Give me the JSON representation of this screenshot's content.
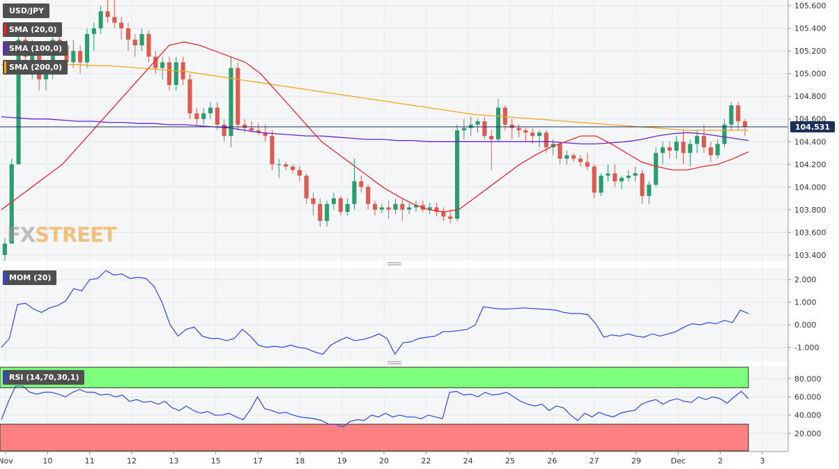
{
  "symbol": "USD/JPY",
  "logo": {
    "part1": "FX",
    "part2": "STREET"
  },
  "current_price_label": "104.531",
  "colors": {
    "up": "#2a9d6f",
    "down": "#dd5a4e",
    "sma20": "#e8262c",
    "sma100": "#6a1fd0",
    "sma200": "#f5a623",
    "momentum": "#2f45e0",
    "rsi": "#2f45e0",
    "price_line": "#1a2f5a",
    "rsi_overbought_zone": "#7dff7d",
    "rsi_oversold_zone": "#ff8080"
  },
  "legends": {
    "sma20": "SMA (20,0)",
    "sma100": "SMA (100,0)",
    "sma200": "SMA (200,0)",
    "mom": "MOM (20)",
    "rsi": "RSI (14,70,30,1)"
  },
  "chart_data": [
    {
      "type": "candlestick",
      "title": "USD/JPY",
      "ylim": [
        103.35,
        105.65
      ],
      "ytick_labels": [
        "103.400",
        "103.600",
        "103.800",
        "104.000",
        "104.200",
        "104.400",
        "104.600",
        "104.800",
        "105.000",
        "105.200",
        "105.400",
        "105.600"
      ],
      "x_tick_labels": [
        "Nov",
        "10",
        "11",
        "12",
        "13",
        "15",
        "17",
        "18",
        "19",
        "20",
        "22",
        "24",
        "25",
        "26",
        "27",
        "29",
        "Dec",
        "2",
        "3"
      ],
      "last_price": 104.531,
      "candles_ohlc": [
        [
          103.4,
          103.55,
          103.35,
          103.5
        ],
        [
          103.5,
          104.25,
          103.5,
          104.2
        ],
        [
          104.2,
          105.35,
          104.2,
          105.3
        ],
        [
          105.3,
          105.45,
          105.05,
          105.15
        ],
        [
          105.1,
          105.3,
          104.95,
          105.25
        ],
        [
          105.2,
          105.25,
          104.85,
          104.95
        ],
        [
          104.95,
          105.1,
          104.85,
          105.05
        ],
        [
          105.05,
          105.35,
          104.95,
          105.3
        ],
        [
          105.3,
          105.4,
          105.2,
          105.25
        ],
        [
          105.25,
          105.3,
          105.05,
          105.1
        ],
        [
          105.1,
          105.3,
          105.05,
          105.2
        ],
        [
          105.2,
          105.25,
          105.0,
          105.1
        ],
        [
          105.1,
          105.4,
          105.05,
          105.35
        ],
        [
          105.35,
          105.45,
          105.2,
          105.4
        ],
        [
          105.4,
          105.6,
          105.35,
          105.55
        ],
        [
          105.55,
          105.65,
          105.45,
          105.5
        ],
        [
          105.5,
          105.65,
          105.4,
          105.45
        ],
        [
          105.45,
          105.5,
          105.3,
          105.4
        ],
        [
          105.4,
          105.45,
          105.2,
          105.3
        ],
        [
          105.3,
          105.35,
          105.15,
          105.25
        ],
        [
          105.25,
          105.4,
          105.2,
          105.35
        ],
        [
          105.35,
          105.38,
          105.1,
          105.15
        ],
        [
          105.15,
          105.2,
          105.0,
          105.05
        ],
        [
          105.05,
          105.15,
          104.95,
          105.1
        ],
        [
          105.1,
          105.15,
          104.85,
          104.9
        ],
        [
          104.9,
          105.15,
          104.85,
          105.1
        ],
        [
          105.1,
          105.15,
          104.9,
          104.95
        ],
        [
          104.95,
          105.0,
          104.6,
          104.65
        ],
        [
          104.65,
          104.7,
          104.55,
          104.6
        ],
        [
          104.6,
          104.7,
          104.55,
          104.65
        ],
        [
          104.65,
          104.75,
          104.6,
          104.7
        ],
        [
          104.7,
          104.75,
          104.5,
          104.55
        ],
        [
          104.55,
          104.6,
          104.4,
          104.45
        ],
        [
          104.45,
          105.15,
          104.35,
          105.05
        ],
        [
          105.05,
          105.1,
          104.5,
          104.55
        ],
        [
          104.55,
          104.6,
          104.48,
          104.52
        ],
        [
          104.52,
          104.58,
          104.48,
          104.5
        ],
        [
          104.5,
          104.56,
          104.46,
          104.48
        ],
        [
          104.48,
          104.55,
          104.4,
          104.45
        ],
        [
          104.45,
          104.5,
          104.15,
          104.2
        ],
        [
          104.2,
          104.25,
          104.08,
          104.2
        ],
        [
          104.2,
          104.22,
          104.15,
          104.18
        ],
        [
          104.18,
          104.2,
          104.12,
          104.15
        ],
        [
          104.15,
          104.18,
          104.05,
          104.1
        ],
        [
          104.1,
          104.12,
          103.85,
          103.9
        ],
        [
          103.9,
          103.95,
          103.75,
          103.85
        ],
        [
          103.85,
          103.9,
          103.65,
          103.7
        ],
        [
          103.7,
          103.88,
          103.65,
          103.85
        ],
        [
          103.85,
          103.95,
          103.8,
          103.9
        ],
        [
          103.9,
          103.92,
          103.75,
          103.78
        ],
        [
          103.78,
          103.9,
          103.75,
          103.85
        ],
        [
          103.85,
          104.25,
          103.8,
          104.05
        ],
        [
          104.05,
          104.1,
          103.95,
          104.0
        ],
        [
          104.0,
          104.02,
          103.8,
          103.85
        ],
        [
          103.85,
          103.88,
          103.75,
          103.8
        ],
        [
          103.8,
          103.85,
          103.77,
          103.82
        ],
        [
          103.82,
          103.88,
          103.72,
          103.8
        ],
        [
          103.8,
          103.9,
          103.76,
          103.85
        ],
        [
          103.85,
          103.9,
          103.7,
          103.8
        ],
        [
          103.8,
          103.86,
          103.76,
          103.82
        ],
        [
          103.82,
          103.88,
          103.78,
          103.84
        ],
        [
          103.84,
          103.88,
          103.78,
          103.8
        ],
        [
          103.8,
          103.86,
          103.76,
          103.82
        ],
        [
          103.82,
          103.86,
          103.74,
          103.78
        ],
        [
          103.78,
          103.82,
          103.7,
          103.74
        ],
        [
          103.74,
          103.8,
          103.68,
          103.72
        ],
        [
          103.72,
          104.55,
          103.7,
          104.5
        ],
        [
          104.5,
          104.6,
          104.42,
          104.52
        ],
        [
          104.52,
          104.62,
          104.45,
          104.55
        ],
        [
          104.55,
          104.6,
          104.48,
          104.58
        ],
        [
          104.58,
          104.62,
          104.42,
          104.45
        ],
        [
          104.45,
          104.5,
          104.15,
          104.42
        ],
        [
          104.42,
          104.78,
          104.4,
          104.7
        ],
        [
          104.7,
          104.72,
          104.5,
          104.55
        ],
        [
          104.55,
          104.6,
          104.42,
          104.52
        ],
        [
          104.52,
          104.55,
          104.44,
          104.5
        ],
        [
          104.5,
          104.52,
          104.4,
          104.48
        ],
        [
          104.48,
          104.52,
          104.38,
          104.45
        ],
        [
          104.45,
          104.5,
          104.35,
          104.48
        ],
        [
          104.48,
          104.5,
          104.3,
          104.35
        ],
        [
          104.35,
          104.42,
          104.28,
          104.38
        ],
        [
          104.38,
          104.4,
          104.2,
          104.25
        ],
        [
          104.25,
          104.32,
          104.2,
          104.28
        ],
        [
          104.28,
          104.3,
          104.22,
          104.25
        ],
        [
          104.25,
          104.28,
          104.18,
          104.22
        ],
        [
          104.22,
          104.3,
          104.15,
          104.18
        ],
        [
          104.18,
          104.2,
          103.9,
          103.95
        ],
        [
          103.95,
          104.12,
          103.92,
          104.1
        ],
        [
          104.1,
          104.2,
          104.05,
          104.12
        ],
        [
          104.12,
          104.2,
          104.0,
          104.05
        ],
        [
          104.05,
          104.1,
          103.98,
          104.08
        ],
        [
          104.08,
          104.15,
          104.05,
          104.1
        ],
        [
          104.1,
          104.18,
          104.05,
          104.12
        ],
        [
          104.12,
          104.15,
          103.85,
          103.92
        ],
        [
          103.92,
          104.05,
          103.85,
          104.02
        ],
        [
          104.02,
          104.35,
          104.0,
          104.3
        ],
        [
          104.3,
          104.4,
          104.2,
          104.35
        ],
        [
          104.35,
          104.4,
          104.25,
          104.32
        ],
        [
          104.32,
          104.45,
          104.25,
          104.4
        ],
        [
          104.4,
          104.5,
          104.2,
          104.3
        ],
        [
          104.3,
          104.42,
          104.18,
          104.38
        ],
        [
          104.38,
          104.5,
          104.3,
          104.45
        ],
        [
          104.45,
          104.55,
          104.3,
          104.35
        ],
        [
          104.35,
          104.4,
          104.22,
          104.28
        ],
        [
          104.28,
          104.42,
          104.25,
          104.38
        ],
        [
          104.38,
          104.6,
          104.35,
          104.55
        ],
        [
          104.55,
          104.75,
          104.5,
          104.72
        ],
        [
          104.72,
          104.75,
          104.5,
          104.58
        ],
        [
          104.58,
          104.6,
          104.45,
          104.53
        ]
      ],
      "series": [
        {
          "name": "SMA (20,0)",
          "values": [
            103.8,
            103.9,
            104.0,
            104.1,
            104.2,
            104.35,
            104.5,
            104.65,
            104.8,
            104.95,
            105.1,
            105.25,
            105.28,
            105.25,
            105.2,
            105.15,
            105.1,
            105.0,
            104.85,
            104.7,
            104.55,
            104.4,
            104.3,
            104.2,
            104.1,
            104.0,
            103.92,
            103.85,
            103.8,
            103.78,
            103.8,
            103.9,
            104.0,
            104.1,
            104.2,
            104.28,
            104.35,
            104.4,
            104.45,
            104.45,
            104.38,
            104.3,
            104.22,
            104.18,
            104.15,
            104.15,
            104.18,
            104.2,
            104.25,
            104.31
          ]
        },
        {
          "name": "SMA (100,0)",
          "values": [
            104.62,
            104.61,
            104.6,
            104.6,
            104.59,
            104.58,
            104.58,
            104.57,
            104.57,
            104.56,
            104.56,
            104.55,
            104.55,
            104.54,
            104.53,
            104.52,
            104.5,
            104.48,
            104.47,
            104.46,
            104.45,
            104.45,
            104.44,
            104.43,
            104.42,
            104.42,
            104.41,
            104.41,
            104.4,
            104.4,
            104.4,
            104.4,
            104.4,
            104.4,
            104.4,
            104.4,
            104.4,
            104.39,
            104.38,
            104.38,
            104.39,
            104.4,
            104.42,
            104.45,
            104.47,
            104.48,
            104.47,
            104.45,
            104.43,
            104.41
          ]
        },
        {
          "name": "SMA (200,0)",
          "values": [
            105.08,
            105.08,
            105.08,
            105.08,
            105.08,
            105.08,
            105.07,
            105.07,
            105.06,
            105.05,
            105.04,
            105.03,
            105.02,
            105.0,
            104.98,
            104.96,
            104.94,
            104.92,
            104.9,
            104.88,
            104.86,
            104.84,
            104.82,
            104.8,
            104.78,
            104.76,
            104.74,
            104.72,
            104.7,
            104.68,
            104.66,
            104.64,
            104.63,
            104.62,
            104.61,
            104.6,
            104.59,
            104.58,
            104.57,
            104.56,
            104.55,
            104.54,
            104.53,
            104.52,
            104.51,
            104.5,
            104.5,
            104.5,
            104.5,
            104.5
          ]
        }
      ]
    },
    {
      "type": "line",
      "title": "MOM (20)",
      "ylim": [
        -1.6,
        2.5
      ],
      "ytick_labels": [
        "2.000",
        "1.000",
        "0.000",
        "-1.000"
      ],
      "series": [
        {
          "name": "MOM (20)",
          "values": [
            -1.0,
            -0.6,
            0.9,
            0.95,
            0.7,
            0.55,
            0.75,
            0.85,
            1.05,
            1.6,
            1.5,
            2.0,
            2.05,
            2.4,
            2.2,
            2.25,
            2.05,
            2.1,
            2.05,
            1.7,
            1.0,
            0.0,
            -0.5,
            -0.2,
            -0.1,
            -0.5,
            -0.6,
            -0.6,
            -0.7,
            -0.6,
            -0.2,
            -0.5,
            -0.9,
            -1.0,
            -0.95,
            -1.0,
            -0.9,
            -1.0,
            -1.05,
            -1.2,
            -1.3,
            -0.9,
            -0.7,
            -0.55,
            -0.7,
            -0.65,
            -0.55,
            -0.4,
            -0.6,
            -1.3,
            -0.8,
            -0.75,
            -0.6,
            -0.55,
            -0.5,
            -0.3,
            -0.3,
            -0.25,
            -0.2,
            0.0,
            0.8,
            0.75,
            0.7,
            0.7,
            0.72,
            0.75,
            0.72,
            0.7,
            0.68,
            0.65,
            0.55,
            0.5,
            0.5,
            0.45,
            0.05,
            -0.55,
            -0.45,
            -0.5,
            -0.4,
            -0.5,
            -0.55,
            -0.4,
            -0.5,
            -0.4,
            -0.3,
            -0.1,
            0.05,
            0.0,
            0.1,
            0.05,
            0.2,
            0.1,
            0.65,
            0.5
          ]
        }
      ]
    },
    {
      "type": "line",
      "title": "RSI (14,70,30,1)",
      "ylim": [
        0,
        94
      ],
      "ytick_labels": [
        "80.000",
        "60.000",
        "40.000",
        "20.000"
      ],
      "series": [
        {
          "name": "RSI (14,70,30,1)",
          "values": [
            35,
            55,
            72,
            72,
            65,
            63,
            65,
            65,
            63,
            60,
            65,
            68,
            65,
            65,
            62,
            63,
            60,
            62,
            55,
            57,
            54,
            55,
            52,
            55,
            48,
            45,
            50,
            45,
            42,
            44,
            40,
            40,
            42,
            38,
            35,
            46,
            60,
            47,
            45,
            42,
            43,
            40,
            38,
            37,
            36,
            34,
            30,
            30,
            27,
            33,
            35,
            34,
            40,
            38,
            42,
            38,
            40,
            38,
            38,
            36,
            40,
            38,
            36,
            65,
            66,
            62,
            63,
            60,
            65,
            62,
            63,
            65,
            60,
            55,
            52,
            50,
            52,
            45,
            50,
            48,
            40,
            34,
            42,
            38,
            43,
            40,
            38,
            42,
            44,
            45,
            52,
            55,
            57,
            52,
            56,
            58,
            55,
            54,
            60,
            57,
            60,
            58,
            53,
            60,
            66,
            58
          ]
        }
      ],
      "overbought": 70,
      "oversold": 30
    }
  ]
}
